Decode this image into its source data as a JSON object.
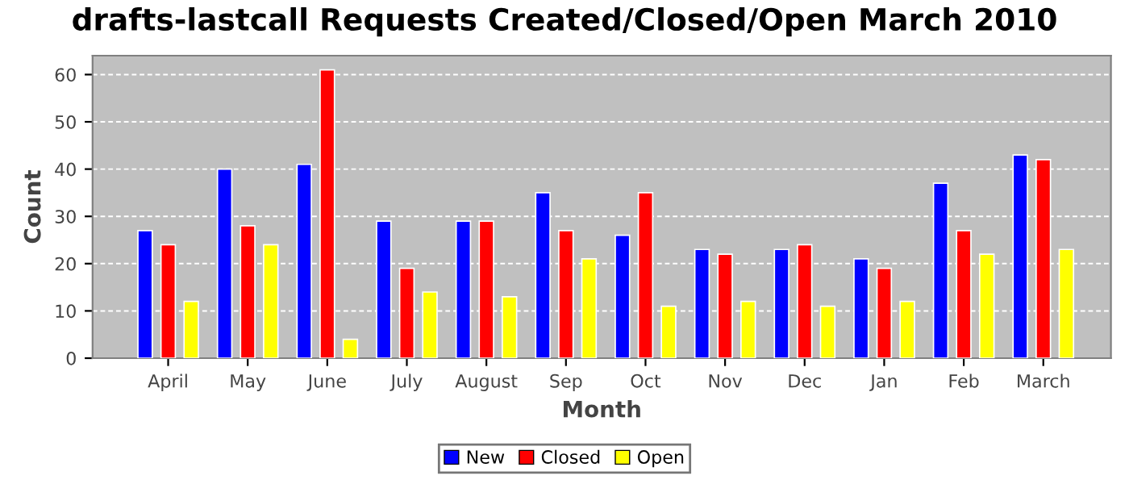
{
  "chart_data": {
    "type": "bar",
    "title": "drafts-lastcall Requests Created/Closed/Open March 2010",
    "xlabel": "Month",
    "ylabel": "Count",
    "categories": [
      "April",
      "May",
      "June",
      "July",
      "August",
      "Sep",
      "Oct",
      "Nov",
      "Dec",
      "Jan",
      "Feb",
      "March"
    ],
    "series": [
      {
        "name": "New",
        "color": "#0000ff",
        "values": [
          27,
          40,
          41,
          29,
          29,
          35,
          26,
          23,
          23,
          21,
          37,
          43
        ]
      },
      {
        "name": "Closed",
        "color": "#ff0000",
        "values": [
          24,
          28,
          61,
          19,
          29,
          27,
          35,
          22,
          24,
          19,
          27,
          42
        ]
      },
      {
        "name": "Open",
        "color": "#ffff00",
        "values": [
          12,
          24,
          4,
          14,
          13,
          21,
          11,
          12,
          11,
          12,
          22,
          23
        ]
      }
    ],
    "ylim": [
      0,
      64
    ],
    "yticks": [
      0,
      10,
      20,
      30,
      40,
      50,
      60
    ],
    "grid": "y",
    "legend": "bottom"
  }
}
